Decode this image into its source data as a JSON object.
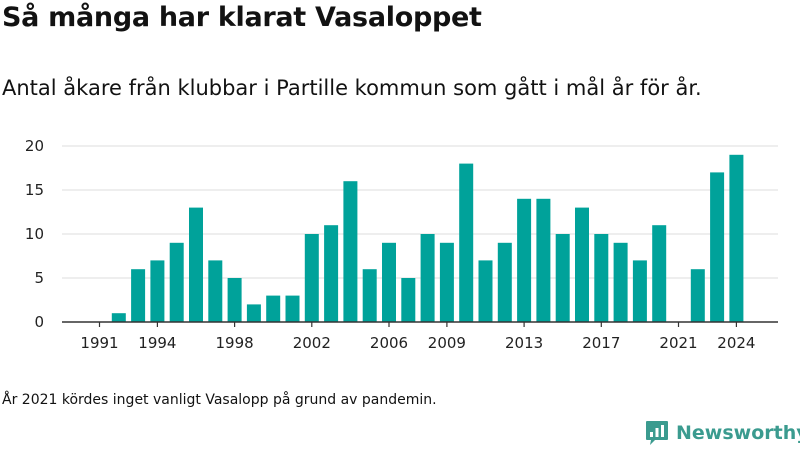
{
  "header": {
    "title": "Så många har klarat Vasaloppet",
    "subtitle": "Antal åkare från klubbar i Partille kommun som gått i mål år för år."
  },
  "footnote": "År 2021 kördes inget vanligt Vasalopp på grund av pandemin.",
  "brand": {
    "name": "Newsworthy",
    "color": "#3b9b8f",
    "icon": "bar-chart-speech-bubble-icon"
  },
  "colors": {
    "bar": "#00a29a",
    "grid": "#dddddd",
    "axis": "#333333"
  },
  "chart_data": {
    "type": "bar",
    "title": "Så många har klarat Vasaloppet",
    "subtitle": "Antal åkare från klubbar i Partille kommun som gått i mål år för år.",
    "xlabel": "",
    "ylabel": "",
    "x": [
      1991,
      1992,
      1993,
      1994,
      1995,
      1996,
      1997,
      1998,
      1999,
      2000,
      2001,
      2002,
      2003,
      2004,
      2005,
      2006,
      2007,
      2008,
      2009,
      2010,
      2011,
      2012,
      2013,
      2014,
      2015,
      2016,
      2017,
      2018,
      2019,
      2020,
      2021,
      2022,
      2023,
      2024
    ],
    "values": [
      0,
      1,
      6,
      7,
      9,
      13,
      7,
      5,
      2,
      3,
      3,
      10,
      11,
      16,
      6,
      9,
      5,
      10,
      9,
      18,
      7,
      9,
      14,
      14,
      10,
      13,
      10,
      9,
      7,
      11,
      0,
      6,
      17,
      19
    ],
    "x_ticks": [
      "1991",
      "1994",
      "1998",
      "2002",
      "2006",
      "2009",
      "2013",
      "2017",
      "2021",
      "2024"
    ],
    "y_ticks": [
      "0",
      "5",
      "10",
      "15",
      "20"
    ],
    "ylim": [
      0,
      20
    ],
    "grid": true,
    "legend": "none"
  }
}
